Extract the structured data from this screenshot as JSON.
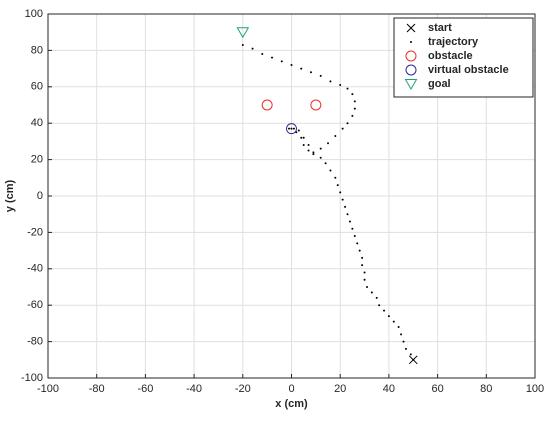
{
  "chart_data": {
    "type": "scatter",
    "xlabel": "x (cm)",
    "ylabel": "y (cm)",
    "xlim": [
      -100,
      100
    ],
    "ylim": [
      -100,
      100
    ],
    "xticks": [
      -100,
      -80,
      -60,
      -40,
      -20,
      0,
      20,
      40,
      60,
      80,
      100
    ],
    "yticks": [
      -100,
      -80,
      -60,
      -40,
      -20,
      0,
      20,
      40,
      60,
      80,
      100
    ],
    "grid": true,
    "legend": "top-right",
    "series": [
      {
        "name": "start",
        "color": "#000000",
        "marker": "x",
        "x": [
          50
        ],
        "y": [
          -90
        ]
      },
      {
        "name": "trajectory",
        "color": "#000000",
        "marker": "dot",
        "x": [
          50,
          49,
          47,
          46,
          45,
          44,
          42,
          40,
          38,
          36,
          35,
          33,
          31,
          30,
          30,
          29,
          29,
          28,
          27,
          26,
          25,
          24,
          23,
          22,
          21,
          20,
          19,
          18,
          16,
          14,
          12,
          9,
          7,
          5,
          4,
          2,
          0,
          -1,
          1,
          3,
          5,
          7,
          9,
          12,
          15,
          18,
          21,
          23,
          25,
          26,
          26,
          25,
          23,
          20,
          16,
          12,
          8,
          4,
          0,
          -4,
          -8,
          -12,
          -16,
          -20
        ],
        "y": [
          -90,
          -87,
          -84,
          -80,
          -76,
          -72,
          -69,
          -66,
          -63,
          -60,
          -56,
          -53,
          -50,
          -46,
          -42,
          -38,
          -34,
          -30,
          -26,
          -22,
          -18,
          -14,
          -10,
          -6,
          -2,
          2,
          6,
          10,
          14,
          18,
          21,
          23,
          25,
          28,
          32,
          35,
          37,
          37,
          37,
          36,
          32,
          28,
          24,
          26,
          29,
          33,
          37,
          40,
          44,
          48,
          52,
          56,
          59,
          61,
          63,
          66,
          68,
          70,
          72,
          74,
          76,
          78,
          81,
          83
        ]
      },
      {
        "name": "obstacle",
        "color": "#e8302a",
        "marker": "circle",
        "x": [
          -10,
          10
        ],
        "y": [
          50,
          50
        ]
      },
      {
        "name": "virtual obstacle",
        "color": "#2a2a9a",
        "marker": "circle",
        "x": [
          0
        ],
        "y": [
          37
        ]
      },
      {
        "name": "goal",
        "color": "#1fa37a",
        "marker": "triangle-down",
        "x": [
          -20
        ],
        "y": [
          90
        ]
      }
    ]
  }
}
